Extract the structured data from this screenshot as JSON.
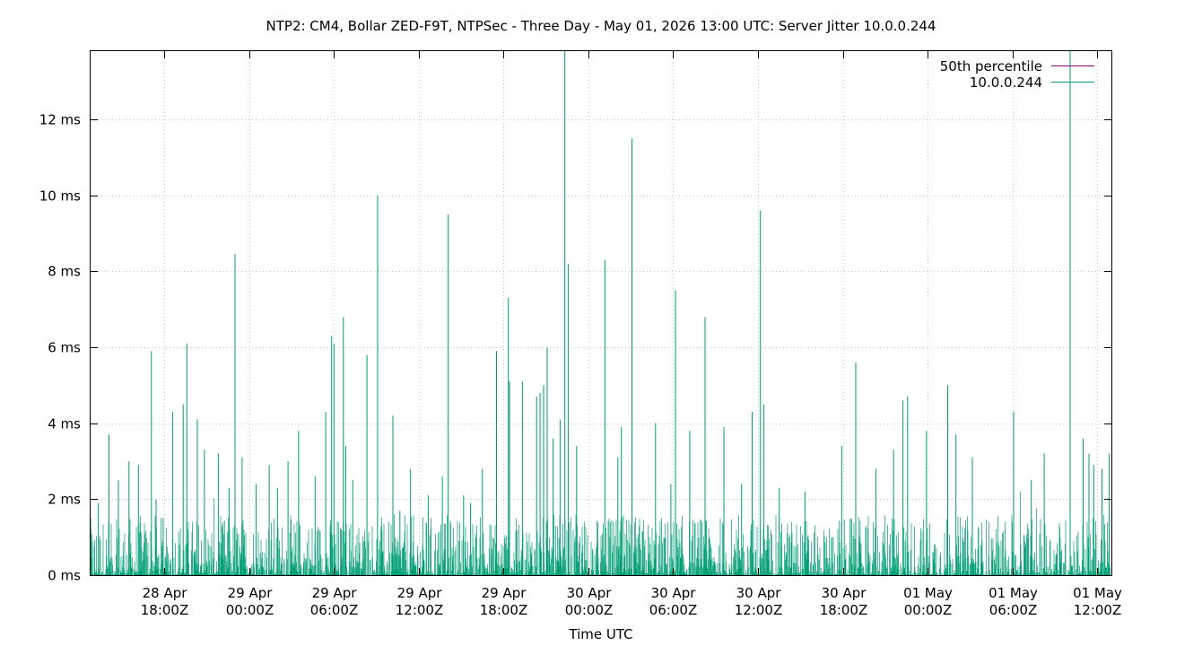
{
  "chart_data": {
    "type": "line",
    "title": "NTP2: CM4, Bollar ZED-F9T, NTPSec - Three Day - May 01, 2026 13:00 UTC: Server Jitter 10.0.0.244",
    "xlabel": "Time UTC",
    "ylabel": "",
    "x_range": [
      "2026-04-28T12:47Z",
      "2026-05-01T13:00Z"
    ],
    "ylim": [
      0,
      13.8
    ],
    "y_unit": "ms",
    "y_ticks": [
      {
        "value": 0,
        "label": "0 ms"
      },
      {
        "value": 2,
        "label": "2 ms"
      },
      {
        "value": 4,
        "label": "4 ms"
      },
      {
        "value": 6,
        "label": "6 ms"
      },
      {
        "value": 8,
        "label": "8 ms"
      },
      {
        "value": 10,
        "label": "10 ms"
      },
      {
        "value": 12,
        "label": "12 ms"
      }
    ],
    "x_ticks": [
      {
        "time": "2026-04-28T18:00Z",
        "line1": "28 Apr",
        "line2": "18:00Z"
      },
      {
        "time": "2026-04-29T00:00Z",
        "line1": "29 Apr",
        "line2": "00:00Z"
      },
      {
        "time": "2026-04-29T06:00Z",
        "line1": "29 Apr",
        "line2": "06:00Z"
      },
      {
        "time": "2026-04-29T12:00Z",
        "line1": "29 Apr",
        "line2": "12:00Z"
      },
      {
        "time": "2026-04-29T18:00Z",
        "line1": "29 Apr",
        "line2": "18:00Z"
      },
      {
        "time": "2026-04-30T00:00Z",
        "line1": "30 Apr",
        "line2": "00:00Z"
      },
      {
        "time": "2026-04-30T06:00Z",
        "line1": "30 Apr",
        "line2": "06:00Z"
      },
      {
        "time": "2026-04-30T12:00Z",
        "line1": "30 Apr",
        "line2": "12:00Z"
      },
      {
        "time": "2026-04-30T18:00Z",
        "line1": "30 Apr",
        "line2": "18:00Z"
      },
      {
        "time": "2026-05-01T00:00Z",
        "line1": "01 May",
        "line2": "00:00Z"
      },
      {
        "time": "2026-05-01T06:00Z",
        "line1": "01 May",
        "line2": "06:00Z"
      },
      {
        "time": "2026-05-01T12:00Z",
        "line1": "01 May",
        "line2": "12:00Z"
      }
    ],
    "grid": true,
    "legend_position": "top-right",
    "series": [
      {
        "name": "50th percentile",
        "color": "#800080",
        "values_ms": []
      },
      {
        "name": "10.0.0.244",
        "color": "#009e73",
        "peaks": [
          {
            "t": "2026-04-28T12:47Z",
            "v": 1.5
          },
          {
            "t": "2026-04-28T13:20Z",
            "v": 1.9
          },
          {
            "t": "2026-04-28T14:05Z",
            "v": 3.7
          },
          {
            "t": "2026-04-28T14:45Z",
            "v": 2.5
          },
          {
            "t": "2026-04-28T15:30Z",
            "v": 3.0
          },
          {
            "t": "2026-04-28T16:10Z",
            "v": 2.9
          },
          {
            "t": "2026-04-28T17:05Z",
            "v": 5.9
          },
          {
            "t": "2026-04-28T17:25Z",
            "v": 2.0
          },
          {
            "t": "2026-04-28T17:55Z",
            "v": 1.5
          },
          {
            "t": "2026-04-28T18:35Z",
            "v": 4.3
          },
          {
            "t": "2026-04-28T19:20Z",
            "v": 4.5
          },
          {
            "t": "2026-04-28T19:35Z",
            "v": 6.1
          },
          {
            "t": "2026-04-28T20:20Z",
            "v": 4.1
          },
          {
            "t": "2026-04-28T20:50Z",
            "v": 3.3
          },
          {
            "t": "2026-04-28T21:50Z",
            "v": 3.2
          },
          {
            "t": "2026-04-28T22:35Z",
            "v": 2.3
          },
          {
            "t": "2026-04-28T23:00Z",
            "v": 8.45
          },
          {
            "t": "2026-04-28T23:30Z",
            "v": 3.1
          },
          {
            "t": "2026-04-29T00:30Z",
            "v": 2.4
          },
          {
            "t": "2026-04-29T01:25Z",
            "v": 2.9
          },
          {
            "t": "2026-04-29T02:00Z",
            "v": 2.3
          },
          {
            "t": "2026-04-29T02:45Z",
            "v": 3.0
          },
          {
            "t": "2026-04-29T03:30Z",
            "v": 3.8
          },
          {
            "t": "2026-04-29T04:40Z",
            "v": 2.6
          },
          {
            "t": "2026-04-29T05:25Z",
            "v": 4.3
          },
          {
            "t": "2026-04-29T05:50Z",
            "v": 6.3
          },
          {
            "t": "2026-04-29T06:00Z",
            "v": 6.1
          },
          {
            "t": "2026-04-29T06:40Z",
            "v": 6.8
          },
          {
            "t": "2026-04-29T06:50Z",
            "v": 3.4
          },
          {
            "t": "2026-04-29T07:20Z",
            "v": 2.5
          },
          {
            "t": "2026-04-29T08:20Z",
            "v": 5.8
          },
          {
            "t": "2026-04-29T09:05Z",
            "v": 10.0
          },
          {
            "t": "2026-04-29T10:10Z",
            "v": 4.2
          },
          {
            "t": "2026-04-29T10:40Z",
            "v": 1.7
          },
          {
            "t": "2026-04-29T11:25Z",
            "v": 2.8
          },
          {
            "t": "2026-04-29T12:40Z",
            "v": 2.1
          },
          {
            "t": "2026-04-29T13:40Z",
            "v": 2.6
          },
          {
            "t": "2026-04-29T14:05Z",
            "v": 9.5
          },
          {
            "t": "2026-04-29T15:10Z",
            "v": 2.1
          },
          {
            "t": "2026-04-29T15:40Z",
            "v": 1.9
          },
          {
            "t": "2026-04-29T16:30Z",
            "v": 2.8
          },
          {
            "t": "2026-04-29T17:30Z",
            "v": 5.9
          },
          {
            "t": "2026-04-29T18:20Z",
            "v": 7.3
          },
          {
            "t": "2026-04-29T18:25Z",
            "v": 5.1
          },
          {
            "t": "2026-04-29T19:20Z",
            "v": 5.1
          },
          {
            "t": "2026-04-29T20:20Z",
            "v": 4.7
          },
          {
            "t": "2026-04-29T20:35Z",
            "v": 4.8
          },
          {
            "t": "2026-04-29T20:50Z",
            "v": 5.0
          },
          {
            "t": "2026-04-29T21:05Z",
            "v": 6.0
          },
          {
            "t": "2026-04-29T21:30Z",
            "v": 3.6
          },
          {
            "t": "2026-04-29T22:00Z",
            "v": 4.1
          },
          {
            "t": "2026-04-29T22:20Z",
            "v": 13.8
          },
          {
            "t": "2026-04-29T22:35Z",
            "v": 8.2
          },
          {
            "t": "2026-04-29T23:10Z",
            "v": 3.4
          },
          {
            "t": "2026-04-30T01:10Z",
            "v": 8.3
          },
          {
            "t": "2026-04-30T02:05Z",
            "v": 3.1
          },
          {
            "t": "2026-04-30T02:20Z",
            "v": 3.9
          },
          {
            "t": "2026-04-30T03:05Z",
            "v": 11.5
          },
          {
            "t": "2026-04-30T04:45Z",
            "v": 4.0
          },
          {
            "t": "2026-04-30T05:50Z",
            "v": 2.4
          },
          {
            "t": "2026-04-30T06:10Z",
            "v": 7.5
          },
          {
            "t": "2026-04-30T07:10Z",
            "v": 3.8
          },
          {
            "t": "2026-04-30T08:15Z",
            "v": 6.8
          },
          {
            "t": "2026-04-30T09:35Z",
            "v": 3.9
          },
          {
            "t": "2026-04-30T10:50Z",
            "v": 2.4
          },
          {
            "t": "2026-04-30T11:35Z",
            "v": 4.3
          },
          {
            "t": "2026-04-30T12:10Z",
            "v": 9.6
          },
          {
            "t": "2026-04-30T12:25Z",
            "v": 4.5
          },
          {
            "t": "2026-04-30T13:30Z",
            "v": 2.3
          },
          {
            "t": "2026-04-30T15:20Z",
            "v": 2.2
          },
          {
            "t": "2026-04-30T17:55Z",
            "v": 3.4
          },
          {
            "t": "2026-04-30T18:55Z",
            "v": 5.6
          },
          {
            "t": "2026-04-30T20:20Z",
            "v": 2.8
          },
          {
            "t": "2026-04-30T21:35Z",
            "v": 3.3
          },
          {
            "t": "2026-04-30T22:15Z",
            "v": 4.6
          },
          {
            "t": "2026-04-30T22:35Z",
            "v": 4.7
          },
          {
            "t": "2026-04-30T23:55Z",
            "v": 3.8
          },
          {
            "t": "2026-05-01T01:25Z",
            "v": 5.0
          },
          {
            "t": "2026-05-01T02:00Z",
            "v": 3.7
          },
          {
            "t": "2026-05-01T03:10Z",
            "v": 3.1
          },
          {
            "t": "2026-05-01T06:05Z",
            "v": 4.3
          },
          {
            "t": "2026-05-01T07:20Z",
            "v": 2.5
          },
          {
            "t": "2026-05-01T08:15Z",
            "v": 3.2
          },
          {
            "t": "2026-05-01T10:05Z",
            "v": 13.8
          },
          {
            "t": "2026-05-01T11:00Z",
            "v": 3.6
          },
          {
            "t": "2026-05-01T11:25Z",
            "v": 3.2
          },
          {
            "t": "2026-05-01T11:45Z",
            "v": 2.9
          },
          {
            "t": "2026-05-01T12:20Z",
            "v": 2.8
          },
          {
            "t": "2026-05-01T12:50Z",
            "v": 3.2
          }
        ]
      }
    ]
  }
}
